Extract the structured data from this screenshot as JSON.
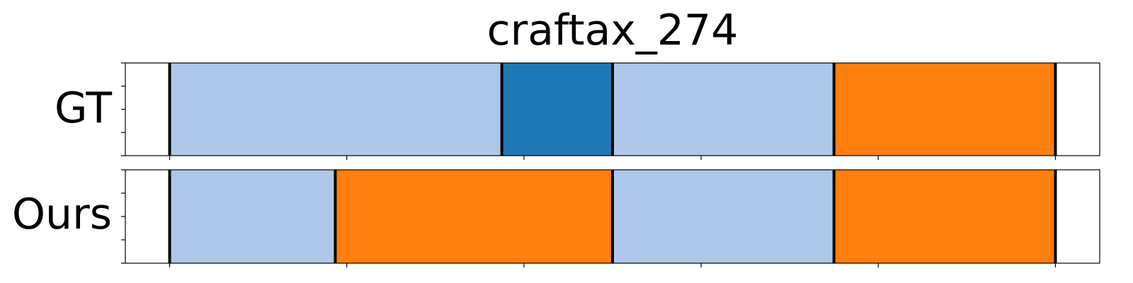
{
  "chart_data": {
    "type": "bar",
    "title": "craftax_274",
    "xlim": [
      0,
      1.1
    ],
    "grid": false,
    "rows": [
      {
        "label": "GT",
        "segments": [
          {
            "start": 0.05,
            "end": 0.425,
            "color": "#aec7e8"
          },
          {
            "start": 0.425,
            "end": 0.55,
            "color": "#1f77b4"
          },
          {
            "start": 0.55,
            "end": 0.8,
            "color": "#aec7e8"
          },
          {
            "start": 0.8,
            "end": 1.05,
            "color": "#ff7f0e"
          }
        ]
      },
      {
        "label": "Ours",
        "segments": [
          {
            "start": 0.05,
            "end": 0.237,
            "color": "#aec7e8"
          },
          {
            "start": 0.237,
            "end": 0.55,
            "color": "#ff7f0e"
          },
          {
            "start": 0.55,
            "end": 0.8,
            "color": "#aec7e8"
          },
          {
            "start": 0.8,
            "end": 1.05,
            "color": "#ff7f0e"
          }
        ]
      }
    ],
    "x_ticks": [
      0.05,
      0.25,
      0.45,
      0.65,
      0.85,
      1.05
    ],
    "y_ticks_per_row": 5
  }
}
